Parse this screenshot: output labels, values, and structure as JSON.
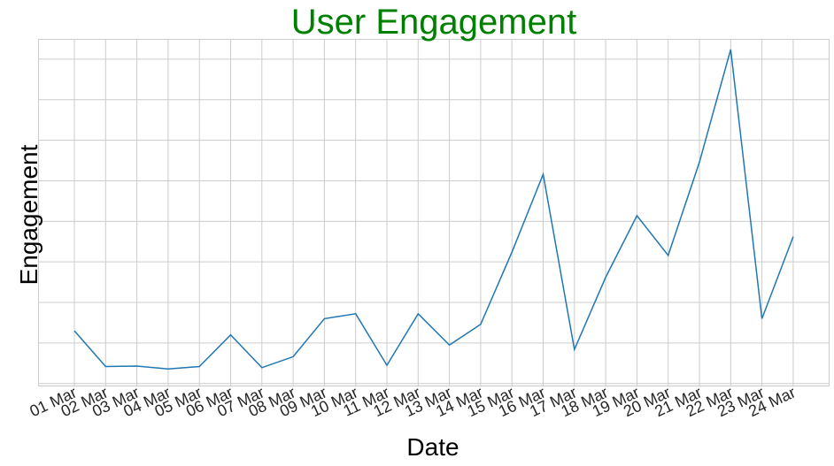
{
  "chart_data": {
    "type": "line",
    "title": "User Engagement",
    "xlabel": "Date",
    "ylabel": "Engagement",
    "categories": [
      "01 Mar",
      "02 Mar",
      "03 Mar",
      "04 Mar",
      "05 Mar",
      "06 Mar",
      "07 Mar",
      "08 Mar",
      "09 Mar",
      "10 Mar",
      "11 Mar",
      "12 Mar",
      "13 Mar",
      "14 Mar",
      "15 Mar",
      "16 Mar",
      "17 Mar",
      "18 Mar",
      "19 Mar",
      "20 Mar",
      "21 Mar",
      "22 Mar",
      "23 Mar",
      "24 Mar"
    ],
    "values": [
      13,
      4.2,
      4.3,
      3.6,
      4.2,
      12,
      3.9,
      6.6,
      16,
      17.2,
      4.5,
      17.2,
      9.5,
      14.6,
      32.4,
      51.6,
      8.4,
      26.2,
      41.4,
      31.6,
      54.6,
      82.4,
      16,
      36.2
    ],
    "ylim": [
      -0.5,
      85
    ],
    "grid": true,
    "y_tick_labels_visible": false,
    "colors": {
      "line": "#1f77b4",
      "title": "#008000",
      "grid": "#cccccc",
      "tick_text": "#262626"
    }
  }
}
